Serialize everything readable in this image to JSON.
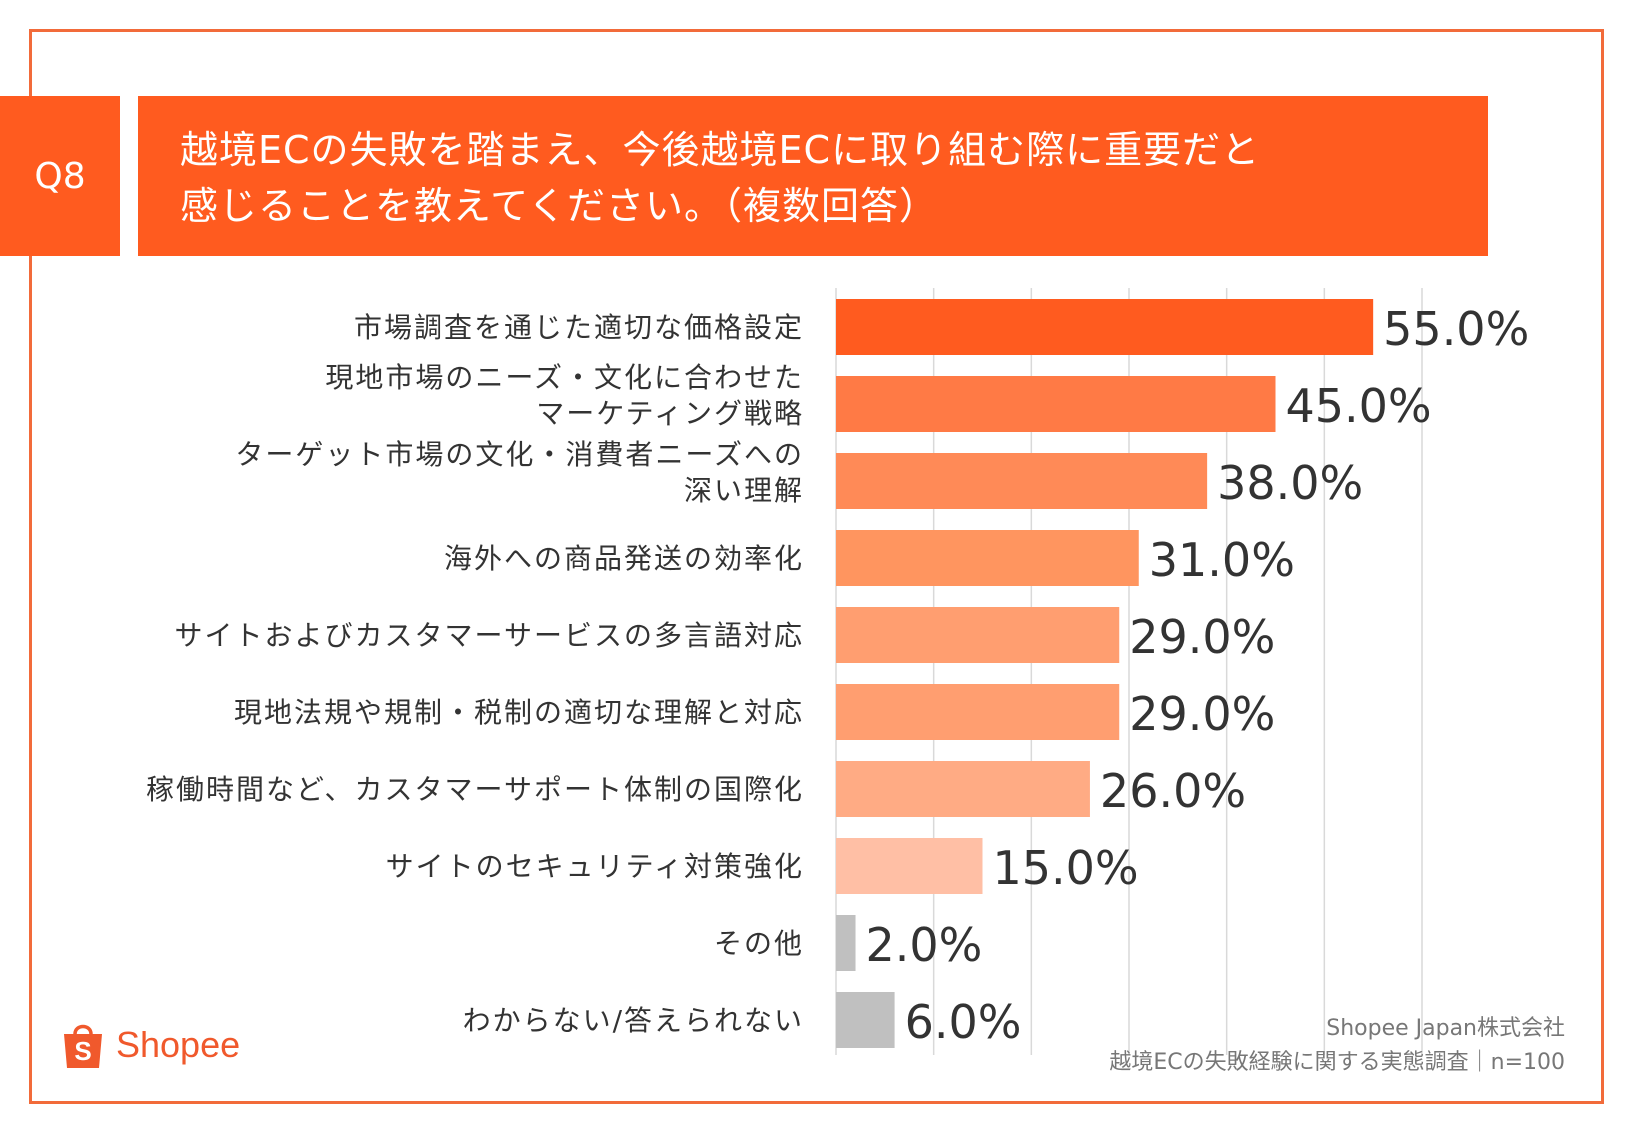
{
  "question": {
    "badge": "Q8",
    "title_line1": "越境ECの失敗を踏まえ、今後越境ECに取り組む際に重要だと",
    "title_line2": "感じることを教えてください。（複数回答）"
  },
  "chart_data": {
    "type": "bar",
    "orientation": "horizontal",
    "categories": [
      [
        "市場調査を通じた適切な価格設定"
      ],
      [
        "現地市場のニーズ・文化に合わせた",
        "マーケティング戦略"
      ],
      [
        "ターゲット市場の文化・消費者ニーズへの",
        "深い理解"
      ],
      [
        "海外への商品発送の効率化"
      ],
      [
        "サイトおよびカスタマーサービスの多言語対応"
      ],
      [
        "現地法規や規制・税制の適切な理解と対応"
      ],
      [
        "稼働時間など、カスタマーサポート体制の国際化"
      ],
      [
        "サイトのセキュリティ対策強化"
      ],
      [
        "その他"
      ],
      [
        "わからない/答えられない"
      ]
    ],
    "values": [
      55.0,
      45.0,
      38.0,
      31.0,
      29.0,
      29.0,
      26.0,
      15.0,
      2.0,
      6.0
    ],
    "value_labels": [
      "55.0%",
      "45.0%",
      "38.0%",
      "31.0%",
      "29.0%",
      "29.0%",
      "26.0%",
      "15.0%",
      "2.0%",
      "6.0%"
    ],
    "bar_colors": [
      "#ff5b1f",
      "#ff7a45",
      "#ff8a57",
      "#ff955f",
      "#ff9e70",
      "#ff9e70",
      "#ffab84",
      "#ffbfa5",
      "#c0c0c0",
      "#c0c0c0"
    ],
    "xlim": [
      0,
      60
    ],
    "grid": true,
    "gridline_values": [
      0,
      10,
      20,
      30,
      40,
      50,
      60
    ]
  },
  "brand": {
    "logo_text": "Shopee",
    "logo_color": "#f0592c"
  },
  "source": {
    "line1": "Shopee Japan株式会社",
    "line2": "越境ECの失敗経験に関する実態調査｜n=100"
  }
}
